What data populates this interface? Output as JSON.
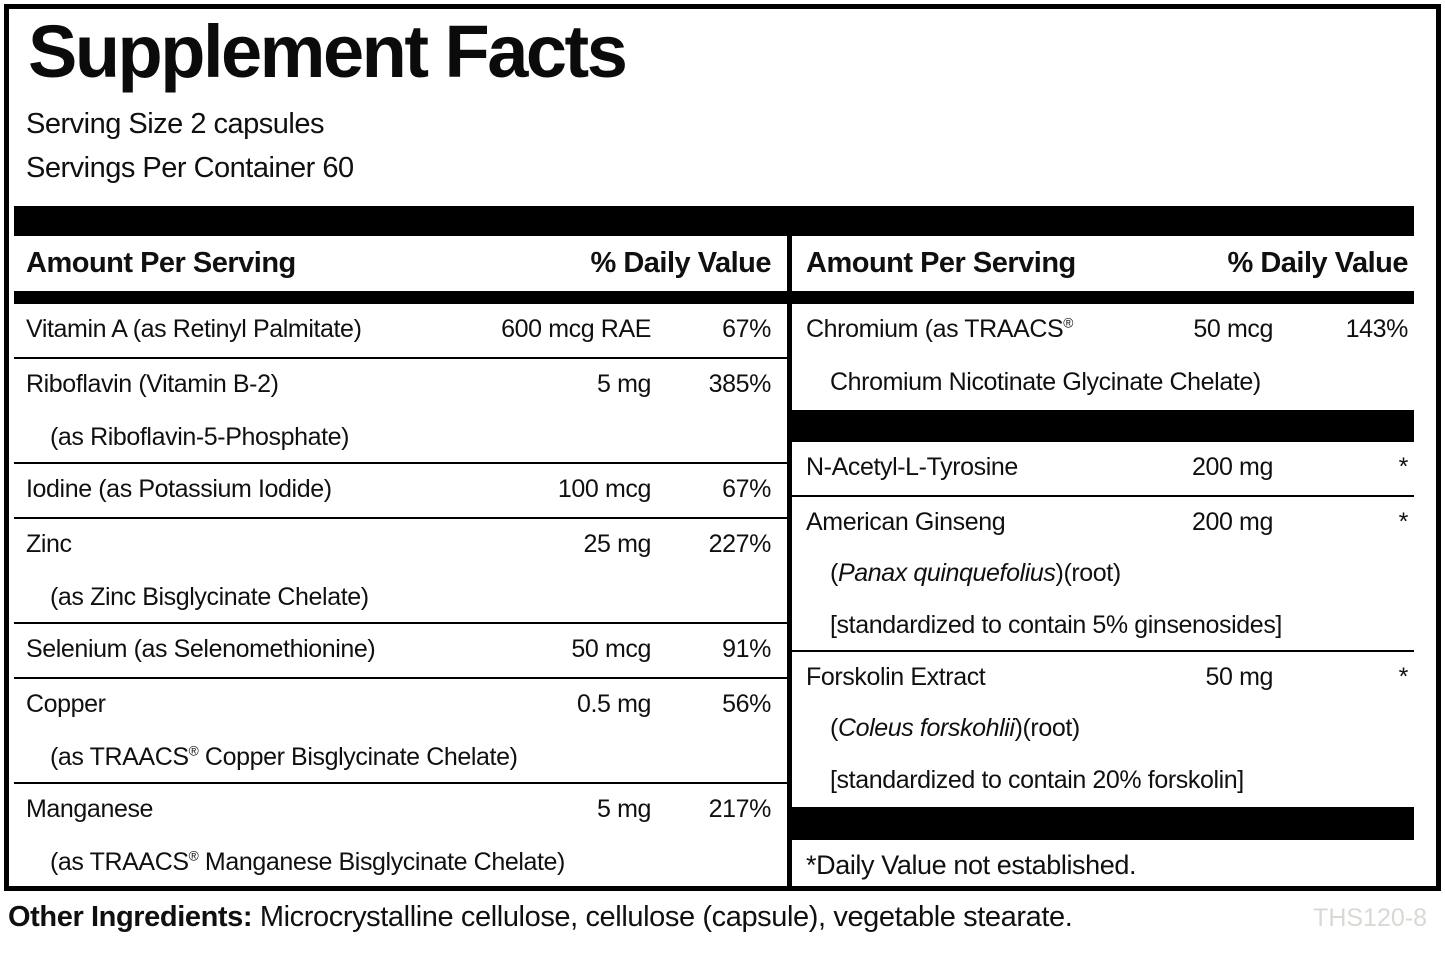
{
  "title": "Supplement Facts",
  "serving_size": "Serving Size 2 capsules",
  "servings_per_container": "Servings Per Container 60",
  "header": {
    "amount": "Amount Per Serving",
    "dv": "% Daily Value"
  },
  "left_rows": [
    {
      "name": "Vitamin A (as Retinyl Palmitate)",
      "amount": "600 mcg RAE",
      "dv": "67%"
    },
    {
      "name": "Riboflavin (Vitamin B-2)",
      "amount": "5 mg",
      "dv": "385%",
      "sub1": "(as Riboflavin-5-Phosphate)"
    },
    {
      "name": "Iodine (as Potassium Iodide)",
      "amount": "100 mcg",
      "dv": "67%"
    },
    {
      "name": "Zinc",
      "amount": "25 mg",
      "dv": "227%",
      "sub1": "(as Zinc Bisglycinate Chelate)"
    },
    {
      "name": "Selenium (as Selenomethionine)",
      "amount": "50 mcg",
      "dv": "91%"
    },
    {
      "name": "Copper",
      "amount": "0.5 mg",
      "dv": "56%",
      "sub1_pre": "(as TRAACS",
      "sub1_sup": "®",
      "sub1_post": " Copper Bisglycinate Chelate)"
    },
    {
      "name": "Manganese",
      "amount": "5 mg",
      "dv": "217%",
      "sub1_pre": "(as TRAACS",
      "sub1_sup": "®",
      "sub1_post": " Manganese Bisglycinate Chelate)"
    }
  ],
  "right_rows": [
    {
      "name": "Chromium (as TRAACS",
      "name_sup": "®",
      "amount": "50 mcg",
      "dv": "143%",
      "sub1": "Chromium Nicotinate Glycinate Chelate)"
    },
    {
      "name": "N-Acetyl-L-Tyrosine",
      "amount": "200 mg",
      "dv": "*"
    },
    {
      "name": "American Ginseng",
      "amount": "200 mg",
      "dv": "*",
      "sub1_pre": "(",
      "sub1_it": "Panax quinquefolius",
      "sub1_post": ")(root)",
      "sub2": "[standardized to contain 5% ginsenosides]"
    },
    {
      "name": "Forskolin Extract",
      "amount": "50 mg",
      "dv": "*",
      "sub1_pre": "(",
      "sub1_it": "Coleus forskohlii",
      "sub1_post": ")(root)",
      "sub2": "[standardized to contain 20% forskolin]"
    }
  ],
  "footnote": "*Daily Value not established.",
  "other_ingredients": {
    "label": "Other Ingredients:",
    "text": " Microcrystalline cellulose, cellulose (capsule), vegetable stearate."
  },
  "product_code": "THS120-8",
  "colors": {
    "text": "#101010",
    "bars": "#000000",
    "code_gray": "#d8d8d4"
  }
}
